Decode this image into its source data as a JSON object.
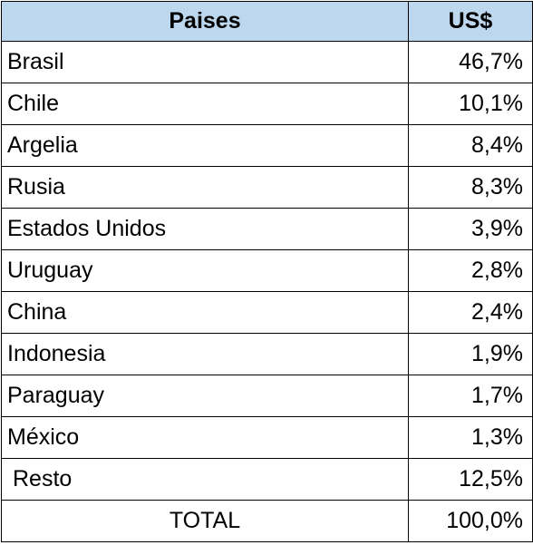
{
  "table": {
    "headers": {
      "country": "Paises",
      "value": "US$"
    },
    "rows": [
      {
        "country": "Brasil",
        "value": "46,7%"
      },
      {
        "country": "Chile",
        "value": "10,1%"
      },
      {
        "country": "Argelia",
        "value": "8,4%"
      },
      {
        "country": "Rusia",
        "value": "8,3%"
      },
      {
        "country": "Estados Unidos",
        "value": "3,9%"
      },
      {
        "country": "Uruguay",
        "value": "2,8%"
      },
      {
        "country": "China",
        "value": "2,4%"
      },
      {
        "country": "Indonesia",
        "value": "1,9%"
      },
      {
        "country": "Paraguay",
        "value": "1,7%"
      },
      {
        "country": "México",
        "value": "1,3%"
      },
      {
        "country": "Resto",
        "value": "12,5%"
      }
    ],
    "total": {
      "label": "TOTAL",
      "value": "100,0%"
    }
  },
  "colors": {
    "header_background": "#bdd7ee",
    "border": "#000000",
    "text": "#000000"
  }
}
